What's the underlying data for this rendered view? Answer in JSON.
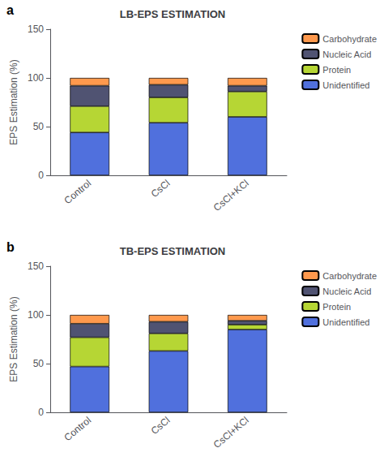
{
  "chart_data": [
    {
      "type": "bar",
      "title": "LB-EPS ESTIMATION",
      "annotations": [
        "a"
      ],
      "categories": [
        "Control",
        "CsCl",
        "CsCl+KCl"
      ],
      "series": [
        {
          "name": "Unidentified",
          "values": [
            44,
            54,
            60
          ]
        },
        {
          "name": "Protein",
          "values": [
            27,
            26,
            26
          ]
        },
        {
          "name": "Nucleic Acid",
          "values": [
            21,
            13,
            6
          ]
        },
        {
          "name": "Carbohydrate",
          "values": [
            8,
            7,
            8
          ]
        }
      ],
      "ylabel": "EPS Estimation (%)",
      "ylim": [
        0,
        150
      ],
      "yticks": [
        0,
        50,
        100,
        150
      ],
      "stacked": true,
      "legend": "upper right",
      "grid": false
    },
    {
      "type": "bar",
      "title": "TB-EPS ESTIMATION",
      "annotations": [
        "b"
      ],
      "categories": [
        "Control",
        "CsCl",
        "CsCl+KCl"
      ],
      "series": [
        {
          "name": "Unidentified",
          "values": [
            47,
            63,
            85
          ]
        },
        {
          "name": "Protein",
          "values": [
            30,
            18,
            5
          ]
        },
        {
          "name": "Nucleic Acid",
          "values": [
            14,
            12,
            4
          ]
        },
        {
          "name": "Carbohydrate",
          "values": [
            9,
            7,
            6
          ]
        }
      ],
      "ylabel": "EPS Estimation (%)",
      "ylim": [
        0,
        150
      ],
      "yticks": [
        0,
        50,
        100,
        150
      ],
      "stacked": true,
      "legend": "upper right",
      "grid": false
    }
  ]
}
